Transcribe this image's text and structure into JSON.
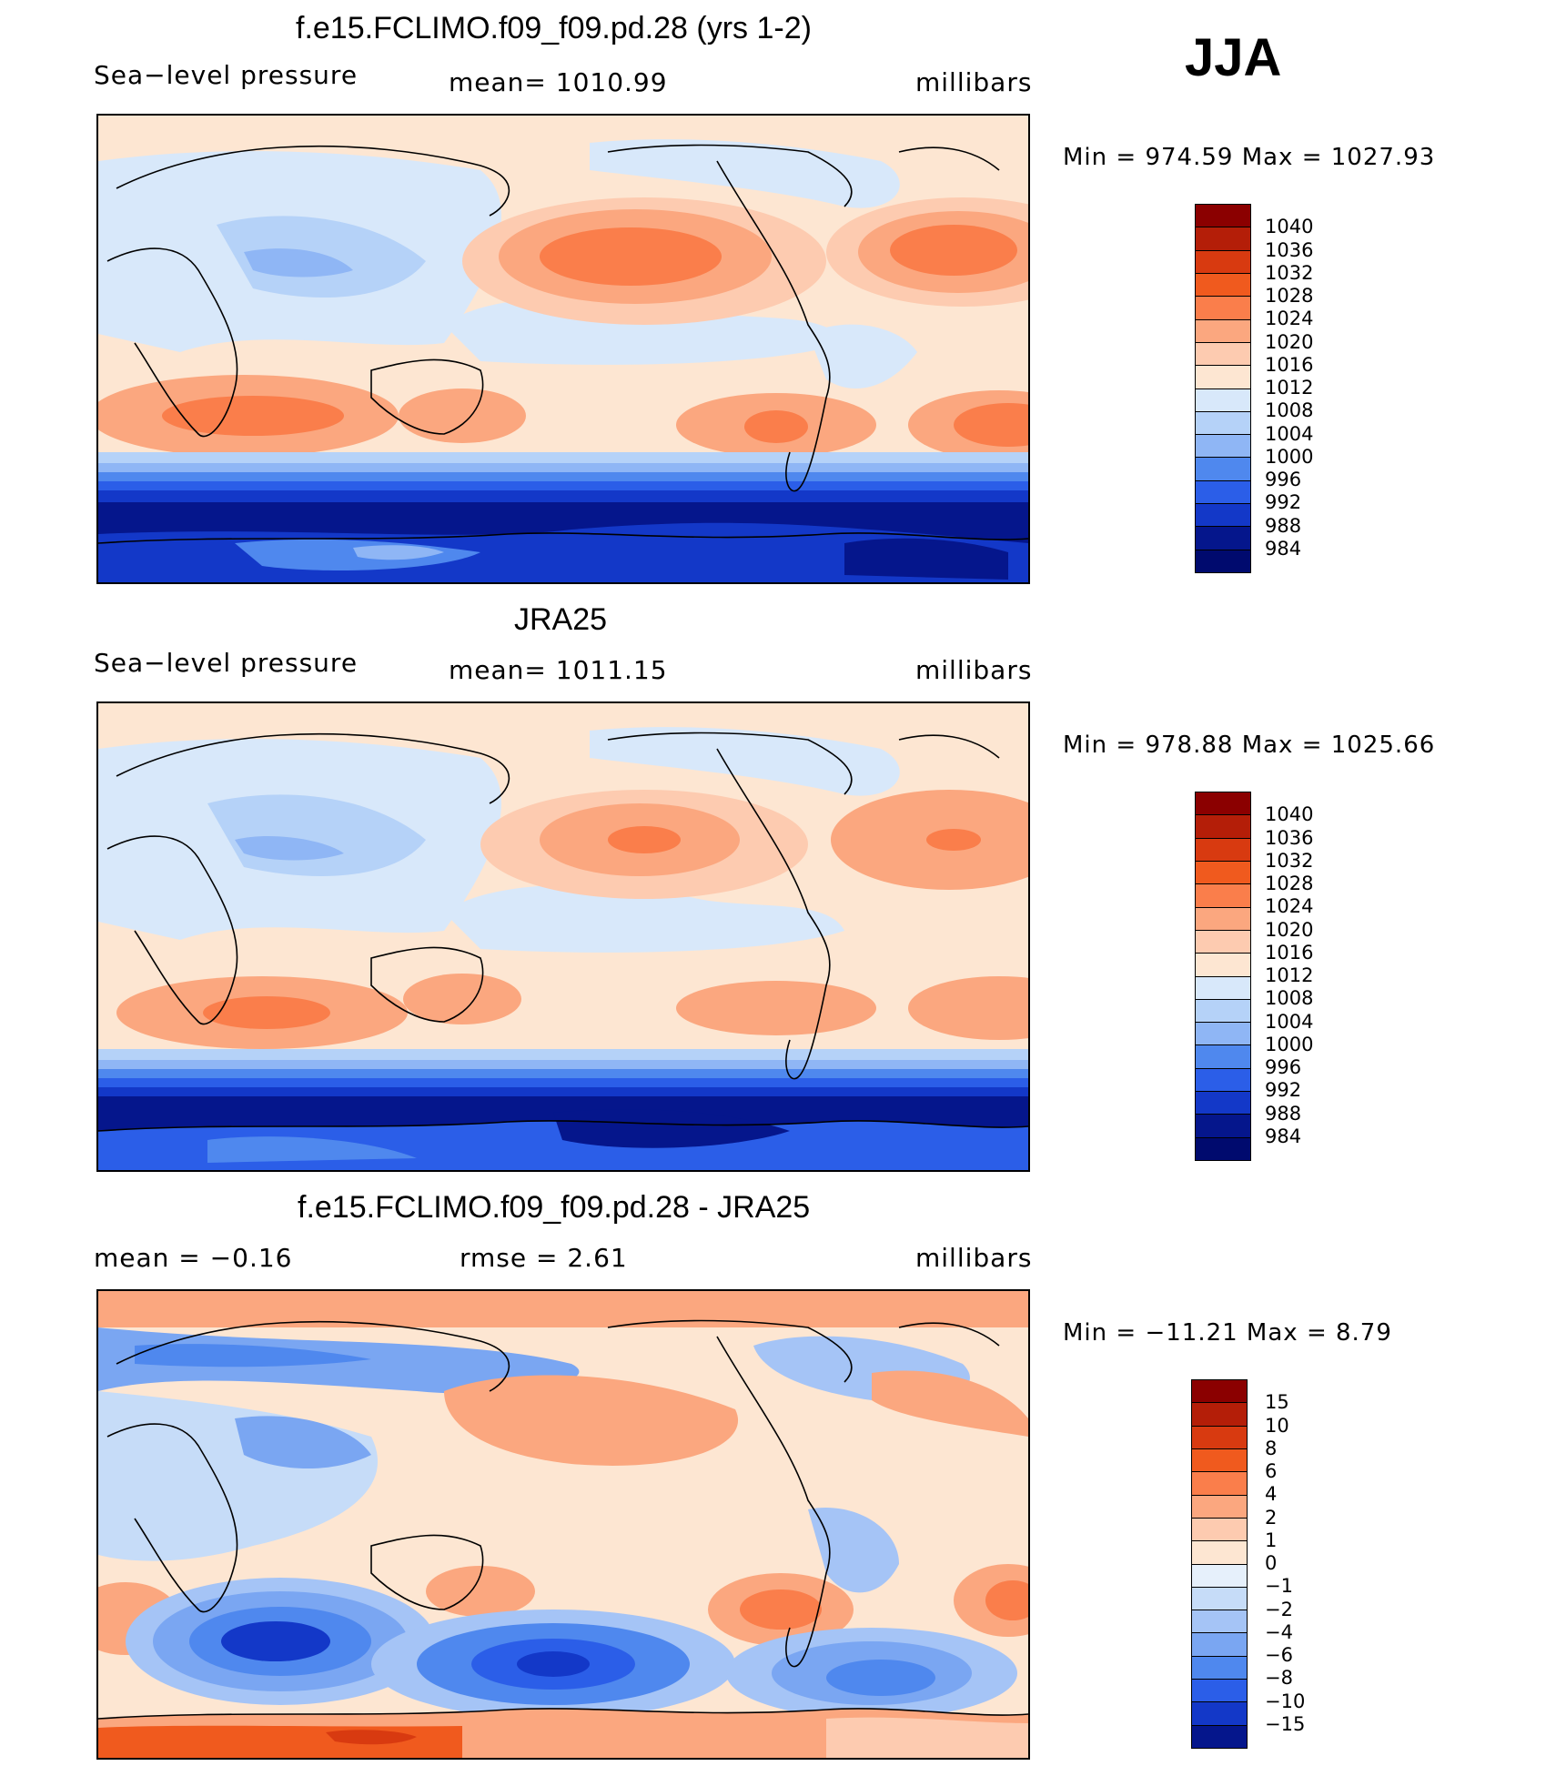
{
  "season": "JJA",
  "panels": [
    {
      "title": "f.e15.FCLIMO.f09_f09.pd.28 (yrs 1-2)",
      "left_label": "Sea−level pressure",
      "center_label": "mean=  1010.99",
      "units": "millibars",
      "minmax": "Min  =  974.59  Max  =  1027.93",
      "colorbar_ticks": [
        "1040",
        "1036",
        "1032",
        "1028",
        "1024",
        "1020",
        "1016",
        "1012",
        "1008",
        "1004",
        "1000",
        "996",
        "992",
        "988",
        "984"
      ]
    },
    {
      "title": "JRA25",
      "left_label": "Sea−level pressure",
      "center_label": "mean=  1011.15",
      "units": "millibars",
      "minmax": "Min  =  978.88  Max  =  1025.66",
      "colorbar_ticks": [
        "1040",
        "1036",
        "1032",
        "1028",
        "1024",
        "1020",
        "1016",
        "1012",
        "1008",
        "1004",
        "1000",
        "996",
        "992",
        "988",
        "984"
      ]
    },
    {
      "title": "f.e15.FCLIMO.f09_f09.pd.28 - JRA25",
      "left_label": "mean  =    −0.16",
      "center_label": "rmse  =     2.61",
      "units": "millibars",
      "minmax": "Min  =  −11.21  Max  =      8.79",
      "colorbar_ticks": [
        "15",
        "10",
        "8",
        "6",
        "4",
        "2",
        "1",
        "0",
        "−1",
        "−2",
        "−4",
        "−6",
        "−8",
        "−10",
        "−15"
      ]
    }
  ],
  "colors": {
    "slp_scale": [
      "#8b0000",
      "#b41e08",
      "#d83a10",
      "#f05a1e",
      "#fa7e4b",
      "#fba77f",
      "#fdcbb0",
      "#fde6d2",
      "#d8e8fa",
      "#b5d2f8",
      "#8fb6f5",
      "#4f88ee",
      "#2b5ee8",
      "#1338c8",
      "#05168c",
      "#000a6e"
    ],
    "diff_scale": [
      "#8b0000",
      "#b41e08",
      "#d83a10",
      "#f05a1e",
      "#fa7e4b",
      "#fba77f",
      "#fdcbb0",
      "#fde6d2",
      "#e6f0fb",
      "#c6dcf8",
      "#a5c4f6",
      "#7aa6f2",
      "#4f88ee",
      "#2b5ee8",
      "#1338c8",
      "#05168c"
    ],
    "coastline": "#000000"
  }
}
